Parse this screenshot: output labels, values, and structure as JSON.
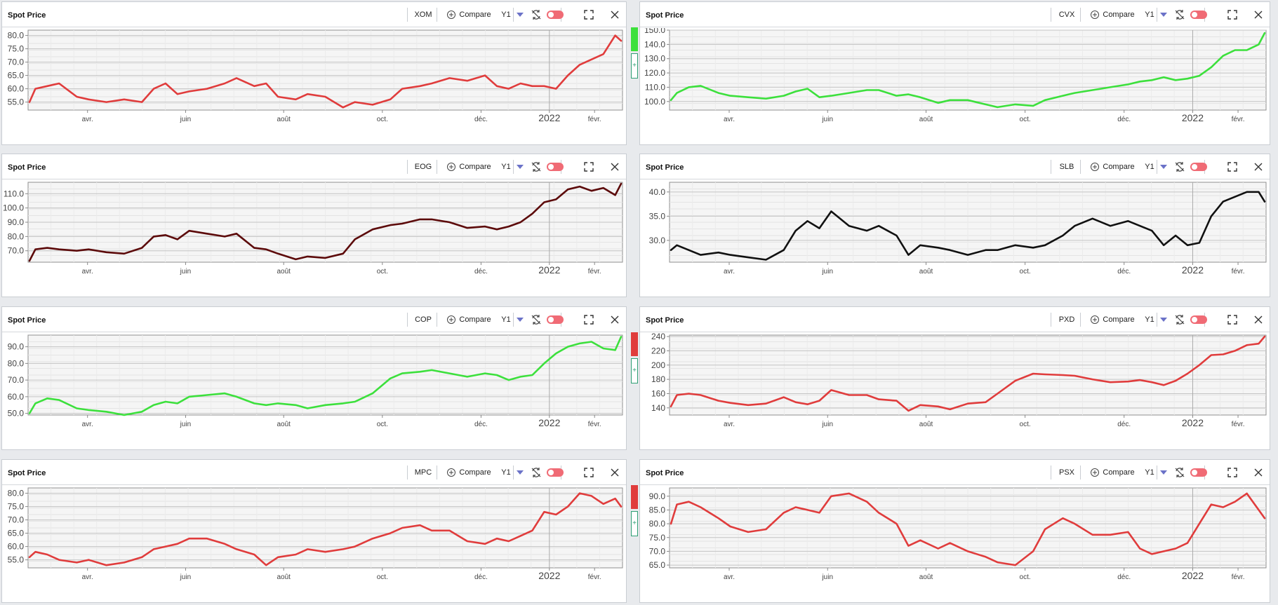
{
  "panel_title": "Spot Price",
  "toolbar": {
    "compare_label": "Compare",
    "period_label": "Y1"
  },
  "add_label": "+",
  "colors": {
    "red": "#e03c3c",
    "green": "#3ce03c",
    "maroon": "#5c0a0a",
    "black": "#111111"
  },
  "chart_data": [
    {
      "type": "line",
      "ticker": "XOM",
      "color": "#e03c3c",
      "strip": "",
      "ylim": [
        52,
        82
      ],
      "yticks": [
        55,
        60,
        65,
        70,
        75,
        80
      ],
      "xticks": [
        "avr.",
        "juin",
        "août",
        "oct.",
        "déc.",
        "2022",
        "févr."
      ],
      "series": [
        {
          "x": [
            0,
            0.01,
            0.03,
            0.05,
            0.08,
            0.1,
            0.13,
            0.16,
            0.19,
            0.21,
            0.23,
            0.25,
            0.27,
            0.3,
            0.33,
            0.35,
            0.38,
            0.4,
            0.42,
            0.45,
            0.47,
            0.5,
            0.53,
            0.55,
            0.58,
            0.61,
            0.63,
            0.66,
            0.68,
            0.71,
            0.74,
            0.77,
            0.79,
            0.81,
            0.83,
            0.85,
            0.87,
            0.89,
            0.91,
            0.93,
            0.95,
            0.97,
            0.99,
            1
          ],
          "values": [
            55,
            60,
            61,
            62,
            57,
            56,
            55,
            56,
            55,
            60,
            62,
            58,
            59,
            60,
            62,
            64,
            61,
            62,
            57,
            56,
            58,
            57,
            53,
            55,
            54,
            56,
            60,
            61,
            62,
            64,
            63,
            65,
            61,
            60,
            62,
            61,
            61,
            60,
            65,
            69,
            71,
            73,
            80,
            78
          ]
        }
      ]
    },
    {
      "type": "line",
      "ticker": "CVX",
      "color": "#3ce03c",
      "strip": "#3ce03c",
      "ylim": [
        94,
        150
      ],
      "yticks": [
        100,
        110,
        120,
        130,
        140,
        150
      ],
      "xticks": [
        "avr.",
        "juin",
        "août",
        "oct.",
        "déc.",
        "2022",
        "févr."
      ],
      "series": [
        {
          "x": [
            0,
            0.01,
            0.03,
            0.05,
            0.08,
            0.1,
            0.13,
            0.16,
            0.19,
            0.21,
            0.23,
            0.25,
            0.27,
            0.3,
            0.33,
            0.35,
            0.38,
            0.4,
            0.42,
            0.45,
            0.47,
            0.5,
            0.53,
            0.55,
            0.58,
            0.61,
            0.63,
            0.66,
            0.68,
            0.71,
            0.74,
            0.77,
            0.79,
            0.81,
            0.83,
            0.85,
            0.87,
            0.89,
            0.91,
            0.93,
            0.95,
            0.97,
            0.99,
            1
          ],
          "values": [
            101,
            106,
            110,
            111,
            106,
            104,
            103,
            102,
            104,
            107,
            109,
            103,
            104,
            106,
            108,
            108,
            104,
            105,
            103,
            99,
            101,
            101,
            98,
            96,
            98,
            97,
            101,
            104,
            106,
            108,
            110,
            112,
            114,
            115,
            117,
            115,
            116,
            118,
            124,
            132,
            136,
            136,
            140,
            148
          ]
        }
      ]
    },
    {
      "type": "line",
      "ticker": "EOG",
      "color": "#5c0a0a",
      "strip": "#111111",
      "ylim": [
        62,
        118
      ],
      "yticks": [
        70,
        80,
        90,
        100,
        110
      ],
      "xticks": [
        "avr.",
        "juin",
        "août",
        "oct.",
        "déc.",
        "2022",
        "févr."
      ],
      "series": [
        {
          "x": [
            0,
            0.01,
            0.03,
            0.05,
            0.08,
            0.1,
            0.13,
            0.16,
            0.19,
            0.21,
            0.23,
            0.25,
            0.27,
            0.3,
            0.33,
            0.35,
            0.38,
            0.4,
            0.42,
            0.45,
            0.47,
            0.5,
            0.53,
            0.55,
            0.58,
            0.61,
            0.63,
            0.66,
            0.68,
            0.71,
            0.74,
            0.77,
            0.79,
            0.81,
            0.83,
            0.85,
            0.87,
            0.89,
            0.91,
            0.93,
            0.95,
            0.97,
            0.99,
            1
          ],
          "values": [
            63,
            71,
            72,
            71,
            70,
            71,
            69,
            68,
            72,
            80,
            81,
            78,
            84,
            82,
            80,
            82,
            72,
            71,
            68,
            64,
            66,
            65,
            68,
            78,
            85,
            88,
            89,
            92,
            92,
            90,
            86,
            87,
            85,
            87,
            90,
            96,
            104,
            106,
            113,
            115,
            112,
            114,
            109,
            117
          ]
        }
      ]
    },
    {
      "type": "line",
      "ticker": "SLB",
      "color": "#111111",
      "strip": "",
      "ylim": [
        25.5,
        42
      ],
      "yticks": [
        30,
        35,
        40
      ],
      "xticks": [
        "avr.",
        "juin",
        "août",
        "oct.",
        "déc.",
        "2022",
        "févr."
      ],
      "series": [
        {
          "x": [
            0,
            0.01,
            0.03,
            0.05,
            0.08,
            0.1,
            0.13,
            0.16,
            0.19,
            0.21,
            0.23,
            0.25,
            0.27,
            0.3,
            0.33,
            0.35,
            0.38,
            0.4,
            0.42,
            0.45,
            0.47,
            0.5,
            0.53,
            0.55,
            0.58,
            0.61,
            0.63,
            0.66,
            0.68,
            0.71,
            0.74,
            0.77,
            0.79,
            0.81,
            0.83,
            0.85,
            0.87,
            0.89,
            0.91,
            0.93,
            0.95,
            0.97,
            0.99,
            1
          ],
          "values": [
            28,
            29,
            28,
            27,
            27.5,
            27,
            26.5,
            26,
            28,
            32,
            34,
            32.5,
            36,
            33,
            32,
            33,
            31,
            27,
            29,
            28.5,
            28,
            27,
            28,
            28,
            29,
            28.5,
            29,
            31,
            33,
            34.5,
            33,
            34,
            33,
            32,
            29,
            31,
            29,
            29.5,
            35,
            38,
            39,
            40,
            40,
            38
          ]
        }
      ]
    },
    {
      "type": "line",
      "ticker": "COP",
      "color": "#3ce03c",
      "strip": "",
      "ylim": [
        49,
        97
      ],
      "yticks": [
        50,
        60,
        70,
        80,
        90
      ],
      "xticks": [
        "avr.",
        "juin",
        "août",
        "oct.",
        "déc.",
        "2022",
        "févr."
      ],
      "series": [
        {
          "x": [
            0,
            0.01,
            0.03,
            0.05,
            0.08,
            0.1,
            0.13,
            0.16,
            0.19,
            0.21,
            0.23,
            0.25,
            0.27,
            0.3,
            0.33,
            0.35,
            0.38,
            0.4,
            0.42,
            0.45,
            0.47,
            0.5,
            0.53,
            0.55,
            0.58,
            0.61,
            0.63,
            0.66,
            0.68,
            0.71,
            0.74,
            0.77,
            0.79,
            0.81,
            0.83,
            0.85,
            0.87,
            0.89,
            0.91,
            0.93,
            0.95,
            0.97,
            0.99,
            1
          ],
          "values": [
            50,
            56,
            59,
            58,
            53,
            52,
            51,
            49,
            51,
            55,
            57,
            56,
            60,
            61,
            62,
            60,
            56,
            55,
            56,
            55,
            53,
            55,
            56,
            57,
            62,
            71,
            74,
            75,
            76,
            74,
            72,
            74,
            73,
            70,
            72,
            73,
            80,
            86,
            90,
            92,
            93,
            89,
            88,
            96
          ]
        }
      ]
    },
    {
      "type": "line",
      "ticker": "PXD",
      "color": "#e03c3c",
      "strip": "#e03c3c",
      "ylim": [
        130,
        242
      ],
      "yticks": [
        140,
        160,
        180,
        200,
        220,
        240
      ],
      "xticks": [
        "avr.",
        "juin",
        "août",
        "oct.",
        "déc.",
        "2022",
        "févr."
      ],
      "series": [
        {
          "x": [
            0,
            0.01,
            0.03,
            0.05,
            0.08,
            0.1,
            0.13,
            0.16,
            0.19,
            0.21,
            0.23,
            0.25,
            0.27,
            0.3,
            0.33,
            0.35,
            0.38,
            0.4,
            0.42,
            0.45,
            0.47,
            0.5,
            0.53,
            0.55,
            0.58,
            0.61,
            0.63,
            0.66,
            0.68,
            0.71,
            0.74,
            0.77,
            0.79,
            0.81,
            0.83,
            0.85,
            0.87,
            0.89,
            0.91,
            0.93,
            0.95,
            0.97,
            0.99,
            1
          ],
          "values": [
            142,
            158,
            160,
            158,
            150,
            147,
            144,
            146,
            155,
            148,
            145,
            150,
            165,
            158,
            158,
            152,
            150,
            136,
            144,
            142,
            138,
            146,
            148,
            160,
            178,
            188,
            187,
            186,
            185,
            180,
            176,
            177,
            179,
            176,
            172,
            178,
            188,
            200,
            214,
            215,
            220,
            228,
            230,
            240
          ]
        }
      ]
    },
    {
      "type": "line",
      "ticker": "MPC",
      "color": "#e03c3c",
      "strip": "",
      "ylim": [
        52,
        82
      ],
      "yticks": [
        55,
        60,
        65,
        70,
        75,
        80
      ],
      "xticks": [
        "avr.",
        "juin",
        "août",
        "oct.",
        "déc.",
        "2022",
        "févr."
      ],
      "series": [
        {
          "x": [
            0,
            0.01,
            0.03,
            0.05,
            0.08,
            0.1,
            0.13,
            0.16,
            0.19,
            0.21,
            0.23,
            0.25,
            0.27,
            0.3,
            0.33,
            0.35,
            0.38,
            0.4,
            0.42,
            0.45,
            0.47,
            0.5,
            0.53,
            0.55,
            0.58,
            0.61,
            0.63,
            0.66,
            0.68,
            0.71,
            0.74,
            0.77,
            0.79,
            0.81,
            0.83,
            0.85,
            0.87,
            0.89,
            0.91,
            0.93,
            0.95,
            0.97,
            0.99,
            1
          ],
          "values": [
            56,
            58,
            57,
            55,
            54,
            55,
            53,
            54,
            56,
            59,
            60,
            61,
            63,
            63,
            61,
            59,
            57,
            53,
            56,
            57,
            59,
            58,
            59,
            60,
            63,
            65,
            67,
            68,
            66,
            66,
            62,
            61,
            63,
            62,
            64,
            66,
            73,
            72,
            75,
            80,
            79,
            76,
            78,
            75
          ]
        }
      ]
    },
    {
      "type": "line",
      "ticker": "PSX",
      "color": "#e03c3c",
      "strip": "#e03c3c",
      "ylim": [
        64,
        93
      ],
      "yticks": [
        65,
        70,
        75,
        80,
        85,
        90
      ],
      "xticks": [
        "avr.",
        "juin",
        "août",
        "oct.",
        "déc.",
        "2022",
        "févr."
      ],
      "series": [
        {
          "x": [
            0,
            0.01,
            0.03,
            0.05,
            0.08,
            0.1,
            0.13,
            0.16,
            0.19,
            0.21,
            0.23,
            0.25,
            0.27,
            0.3,
            0.33,
            0.35,
            0.38,
            0.4,
            0.42,
            0.45,
            0.47,
            0.5,
            0.53,
            0.55,
            0.58,
            0.61,
            0.63,
            0.66,
            0.68,
            0.71,
            0.74,
            0.77,
            0.79,
            0.81,
            0.83,
            0.85,
            0.87,
            0.89,
            0.91,
            0.93,
            0.95,
            0.97,
            0.99,
            1
          ],
          "values": [
            80,
            87,
            88,
            86,
            82,
            79,
            77,
            78,
            84,
            86,
            85,
            84,
            90,
            91,
            88,
            84,
            80,
            72,
            74,
            71,
            73,
            70,
            68,
            66,
            65,
            70,
            78,
            82,
            80,
            76,
            76,
            77,
            71,
            69,
            70,
            71,
            73,
            80,
            87,
            86,
            88,
            91,
            85,
            82
          ]
        }
      ]
    }
  ]
}
